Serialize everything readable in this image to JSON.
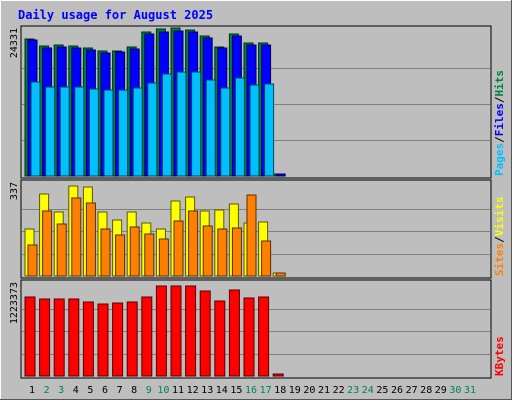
{
  "chart_data": {
    "type": "bar",
    "title": "Daily usage for August 2025",
    "categories": [
      "1",
      "2",
      "3",
      "4",
      "5",
      "6",
      "7",
      "8",
      "9",
      "10",
      "11",
      "12",
      "13",
      "14",
      "15",
      "16",
      "17",
      "18",
      "19",
      "20",
      "21",
      "22",
      "23",
      "24",
      "25",
      "26",
      "27",
      "28",
      "29",
      "30",
      "31"
    ],
    "weekend_days": [
      "2",
      "3",
      "9",
      "10",
      "16",
      "17",
      "23",
      "24",
      "30",
      "31"
    ],
    "panels": [
      {
        "name": "hits-files-pages",
        "ymax_label": "24331",
        "ymax": 24331,
        "legend": [
          "Pages",
          "/",
          "Files",
          "/",
          "Hits"
        ],
        "series": [
          {
            "name": "Hits",
            "color": "#008040",
            "values": [
              23200,
              22000,
              22100,
              22000,
              21600,
              21100,
              21200,
              21800,
              24300,
              24900,
              25000,
              24600,
              23600,
              21800,
              24000,
              22500,
              22500,
              400,
              0,
              0,
              0,
              0,
              0,
              0,
              0,
              0,
              0,
              0,
              0,
              0,
              0
            ]
          },
          {
            "name": "Files",
            "color": "#0000ff",
            "values": [
              22900,
              21700,
              21800,
              21700,
              21300,
              20800,
              20900,
              21500,
              24000,
              24300,
              24500,
              24300,
              23300,
              21600,
              23700,
              22200,
              22200,
              350,
              0,
              0,
              0,
              0,
              0,
              0,
              0,
              0,
              0,
              0,
              0,
              0,
              0
            ]
          },
          {
            "name": "Pages",
            "color": "#00c0ff",
            "values": [
              15800,
              15000,
              15000,
              15000,
              14700,
              14600,
              14600,
              14800,
              15700,
              17300,
              17600,
              17500,
              16300,
              14900,
              16600,
              15400,
              15500,
              0,
              0,
              0,
              0,
              0,
              0,
              0,
              0,
              0,
              0,
              0,
              0,
              0,
              0
            ]
          }
        ]
      },
      {
        "name": "visits-sites",
        "ymax_label": "337",
        "ymax": 337,
        "legend": [
          "Sites",
          "/",
          "Visits"
        ],
        "series": [
          {
            "name": "Visits",
            "color": "#ffff00",
            "values": [
              177,
              308,
              240,
              336,
              335,
              241,
              210,
              238,
              200,
              175,
              281,
              295,
              245,
              247,
              268,
              200,
              203,
              11,
              0,
              0,
              0,
              0,
              0,
              0,
              0,
              0,
              0,
              0,
              0,
              0,
              0
            ]
          },
          {
            "name": "Sites",
            "color": "#ff8000",
            "values": [
              117,
              244,
              193,
              291,
              272,
              176,
              154,
              183,
              157,
              140,
              205,
              243,
              186,
              176,
              180,
              302,
              131,
              11,
              0,
              0,
              0,
              0,
              0,
              0,
              0,
              0,
              0,
              0,
              0,
              0,
              0
            ]
          }
        ]
      },
      {
        "name": "kbytes",
        "ymax_label": "1223373",
        "ymax": 1223373,
        "legend": [
          "KBytes"
        ],
        "series": [
          {
            "name": "KBytes",
            "color": "#ff0000",
            "values": [
              1080000,
              1040000,
              1040000,
              1040000,
              1000000,
              980000,
              990000,
              1010000,
              1070000,
              1230000,
              1220000,
              1220000,
              1150000,
              1020000,
              1170000,
              1060000,
              1080000,
              30000,
              0,
              0,
              0,
              0,
              0,
              0,
              0,
              0,
              0,
              0,
              0,
              0,
              0
            ]
          }
        ]
      }
    ],
    "grid": true,
    "legend_placement": "right (vertical)"
  }
}
